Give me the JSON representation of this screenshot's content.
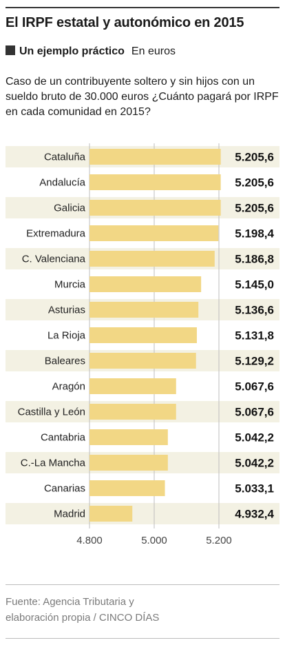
{
  "header": {
    "title": "El IRPF estatal y autonómico en 2015",
    "subtitle": "Un ejemplo práctico",
    "unit": "En euros",
    "description": "Caso de un contribuyente soltero y sin hijos con un sueldo bruto de 30.000 euros ¿Cuánto pagará por IRPF en cada comunidad en 2015?"
  },
  "chart_data": {
    "type": "bar",
    "orientation": "horizontal",
    "categories": [
      "Cataluña",
      "Andalucía",
      "Galicia",
      "Extremadura",
      "C. Valenciana",
      "Murcia",
      "Asturias",
      "La Rioja",
      "Baleares",
      "Aragón",
      "Castilla y León",
      "Cantabria",
      "C.-La Mancha",
      "Canarias",
      "Madrid"
    ],
    "values": [
      5205.6,
      5205.6,
      5205.6,
      5198.4,
      5186.8,
      5145.0,
      5136.6,
      5131.8,
      5129.2,
      5067.6,
      5067.6,
      5042.2,
      5042.2,
      5033.1,
      4932.4
    ],
    "value_labels": [
      "5.205,6",
      "5.205,6",
      "5.205,6",
      "5.198,4",
      "5.186,8",
      "5.145,0",
      "5.136,6",
      "5.131,8",
      "5.129,2",
      "5.067,6",
      "5.067,6",
      "5.042,2",
      "5.042,2",
      "5.033,1",
      "4.932,4"
    ],
    "xlim": [
      4800,
      5200
    ],
    "xticks": [
      4800,
      5000,
      5200
    ],
    "xtick_labels": [
      "4.800",
      "5.000",
      "5.200"
    ],
    "grid": true,
    "bar_color": "#f2d785",
    "stripe_color": "#f3f1e3"
  },
  "footer": {
    "source_line1": "Fuente: Agencia Tributaria y",
    "source_line2": "elaboración propia / CINCO DÍAS"
  }
}
